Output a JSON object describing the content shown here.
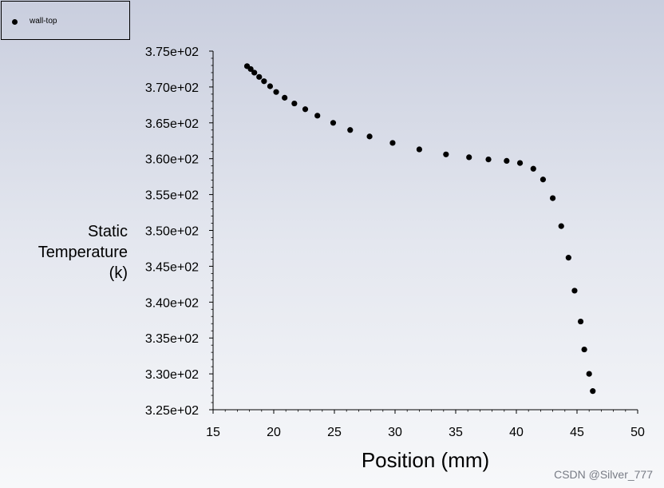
{
  "chart_data": {
    "type": "scatter",
    "title": "",
    "xlabel": "Position (mm)",
    "ylabel_lines": [
      "Static",
      "Temperature",
      "(k)"
    ],
    "xlim": [
      15,
      50
    ],
    "ylim": [
      325,
      375
    ],
    "x_ticks": [
      15,
      20,
      25,
      30,
      35,
      40,
      45,
      50
    ],
    "x_tick_labels": [
      "15",
      "20",
      "25",
      "30",
      "35",
      "40",
      "45",
      "50"
    ],
    "y_ticks": [
      325,
      330,
      335,
      340,
      345,
      350,
      355,
      360,
      365,
      370,
      375
    ],
    "y_tick_labels": [
      "3.25e+02",
      "3.30e+02",
      "3.35e+02",
      "3.40e+02",
      "3.45e+02",
      "3.50e+02",
      "3.55e+02",
      "3.60e+02",
      "3.65e+02",
      "3.70e+02",
      "3.75e+02"
    ],
    "grid": false,
    "legend_position": "top-left",
    "series": [
      {
        "name": "wall-top",
        "color": "#000000",
        "points": [
          [
            17.8,
            372.9
          ],
          [
            18.1,
            372.5
          ],
          [
            18.4,
            372.0
          ],
          [
            18.8,
            371.4
          ],
          [
            19.2,
            370.8
          ],
          [
            19.7,
            370.1
          ],
          [
            20.2,
            369.3
          ],
          [
            20.9,
            368.5
          ],
          [
            21.7,
            367.7
          ],
          [
            22.6,
            366.9
          ],
          [
            23.6,
            366.0
          ],
          [
            24.9,
            365.0
          ],
          [
            26.3,
            364.0
          ],
          [
            27.9,
            363.1
          ],
          [
            29.8,
            362.2
          ],
          [
            32.0,
            361.3
          ],
          [
            34.2,
            360.6
          ],
          [
            36.1,
            360.2
          ],
          [
            37.7,
            359.9
          ],
          [
            39.2,
            359.7
          ],
          [
            40.3,
            359.4
          ],
          [
            41.4,
            358.6
          ],
          [
            42.2,
            357.1
          ],
          [
            43.0,
            354.5
          ],
          [
            43.7,
            350.6
          ],
          [
            44.3,
            346.2
          ],
          [
            44.8,
            341.6
          ],
          [
            45.3,
            337.3
          ],
          [
            45.6,
            333.4
          ],
          [
            46.0,
            330.0
          ],
          [
            46.3,
            327.6
          ]
        ]
      }
    ]
  },
  "legend": {
    "label": "wall-top"
  },
  "watermark": "CSDN @Silver_777"
}
